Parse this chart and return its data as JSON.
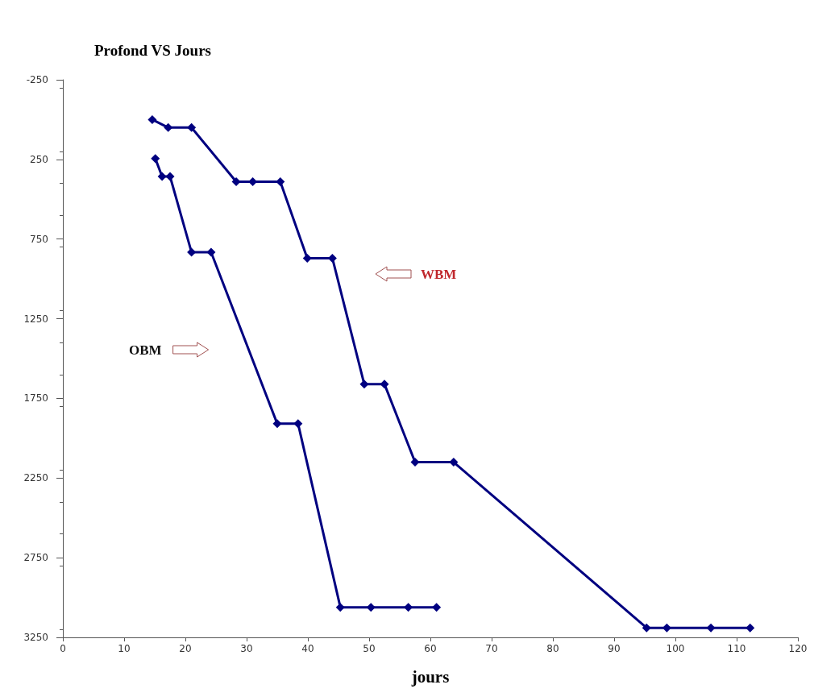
{
  "chart_data": {
    "type": "line",
    "title": "Profond VS Jours",
    "xlabel": "jours",
    "xlim": [
      0,
      120
    ],
    "xticks": [
      0,
      10,
      20,
      30,
      40,
      50,
      60,
      70,
      80,
      90,
      100,
      110,
      120
    ],
    "ylim": [
      3250,
      -250
    ],
    "yticks": [
      -250,
      250,
      750,
      1250,
      1750,
      2250,
      2750,
      3250
    ],
    "grid": false,
    "marker": "diamond",
    "line_style": "solid",
    "series": [
      {
        "color": "#000080",
        "x": [
          14.6,
          17.2,
          21,
          28.3,
          31,
          35.5,
          39.9,
          44,
          49.2,
          52.5,
          57.5,
          63.8,
          95.3,
          98.6,
          105.8,
          112.2
        ],
        "values": [
          0,
          50,
          50,
          390,
          390,
          390,
          870,
          870,
          1660,
          1660,
          2150,
          2150,
          3190,
          3190,
          3190,
          3190
        ]
      },
      {
        "color": "#000080",
        "x": [
          15.1,
          16.2,
          17.5,
          21,
          24.2,
          35,
          38.4,
          45.3,
          50.3,
          56.4,
          61
        ],
        "values": [
          245,
          357,
          357,
          832,
          832,
          1909,
          1909,
          3061,
          3061,
          3061,
          3061
        ]
      }
    ],
    "annotations": [
      "WBM",
      "OBM"
    ]
  }
}
